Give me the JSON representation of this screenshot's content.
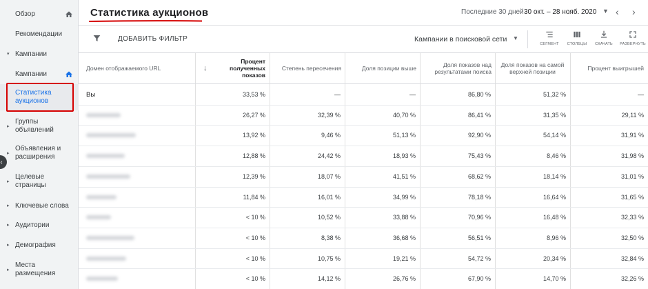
{
  "sidebar": {
    "items": [
      {
        "label": "Обзор",
        "arrow": "",
        "home": true
      },
      {
        "label": "Рекомендации",
        "arrow": "",
        "home": false
      },
      {
        "label": "Кампании",
        "arrow": "▾",
        "home": false
      },
      {
        "label": "Кампании",
        "arrow": "",
        "home": true
      },
      {
        "label": "Статистика аукционов",
        "arrow": "",
        "home": false
      },
      {
        "label": "Группы объявлений",
        "arrow": "▸",
        "home": false
      },
      {
        "label": "Объявления и расширения",
        "arrow": "▸",
        "home": false
      },
      {
        "label": "Целевые страницы",
        "arrow": "▸",
        "home": false
      },
      {
        "label": "Ключевые слова",
        "arrow": "▸",
        "home": false
      },
      {
        "label": "Аудитории",
        "arrow": "▸",
        "home": false
      },
      {
        "label": "Демография",
        "arrow": "▸",
        "home": false
      },
      {
        "label": "Места размещения",
        "arrow": "▸",
        "home": false
      }
    ],
    "item1": "Обзор",
    "item2": "Рекомендации",
    "item3": "Кампании",
    "item4": "Кампании",
    "item5a": "Статистика",
    "item5b": "аукционов",
    "item6a": "Группы",
    "item6b": "объявлений",
    "item7a": "Объявления и",
    "item7b": "расширения",
    "item8a": "Целевые",
    "item8b": "страницы",
    "item9": "Ключевые слова",
    "item10": "Аудитории",
    "item11": "Демография",
    "item12a": "Места",
    "item12b": "размещения",
    "active_color": "#1a73e8",
    "highlight_color": "#d50000"
  },
  "header": {
    "title": "Статистика аукционов",
    "date_label": "Последние 30 дней",
    "date_range": "30 окт. – 28 нояб. 2020",
    "accent_underline": "#d50000"
  },
  "toolbar": {
    "add_filter": "ДОБАВИТЬ ФИЛЬТР",
    "campaign_select": "Кампании в поисковой сети",
    "tools": {
      "segment": "СЕГМЕНТ",
      "columns": "СТОЛБЦЫ",
      "download": "СКАЧАТЬ",
      "expand": "РАЗВЕРНУТЬ"
    }
  },
  "table": {
    "headers": {
      "domain": "Домен отображаемого URL",
      "impr_share_a": "Процент",
      "impr_share_b": "полученных",
      "impr_share_c": "показов",
      "overlap": "Степень пересечения",
      "position_above": "Доля позиции выше",
      "top_rate_a": "Доля показов над",
      "top_rate_b": "результатами поиска",
      "abs_top_a": "Доля показов на самой",
      "abs_top_b": "верхней позиции",
      "outranking": "Процент выигрышей"
    },
    "rows": [
      {
        "domain": "Вы",
        "impr_share": "33,53 %",
        "overlap": "—",
        "position_above": "—",
        "top_rate": "86,80 %",
        "abs_top": "51,32 %",
        "outranking": "—"
      },
      {
        "domain": "",
        "impr_share": "26,27 %",
        "overlap": "32,39 %",
        "position_above": "40,70 %",
        "top_rate": "86,41 %",
        "abs_top": "31,35 %",
        "outranking": "29,11 %"
      },
      {
        "domain": "",
        "impr_share": "13,92 %",
        "overlap": "9,46 %",
        "position_above": "51,13 %",
        "top_rate": "92,90 %",
        "abs_top": "54,14 %",
        "outranking": "31,91 %"
      },
      {
        "domain": "",
        "impr_share": "12,88 %",
        "overlap": "24,42 %",
        "position_above": "18,93 %",
        "top_rate": "75,43 %",
        "abs_top": "8,46 %",
        "outranking": "31,98 %"
      },
      {
        "domain": "",
        "impr_share": "12,39 %",
        "overlap": "18,07 %",
        "position_above": "41,51 %",
        "top_rate": "68,62 %",
        "abs_top": "18,14 %",
        "outranking": "31,01 %"
      },
      {
        "domain": "",
        "impr_share": "11,84 %",
        "overlap": "16,01 %",
        "position_above": "34,99 %",
        "top_rate": "78,18 %",
        "abs_top": "16,64 %",
        "outranking": "31,65 %"
      },
      {
        "domain": "",
        "impr_share": "< 10 %",
        "overlap": "10,52 %",
        "position_above": "33,88 %",
        "top_rate": "70,96 %",
        "abs_top": "16,48 %",
        "outranking": "32,33 %"
      },
      {
        "domain": "",
        "impr_share": "< 10 %",
        "overlap": "8,38 %",
        "position_above": "36,68 %",
        "top_rate": "56,51 %",
        "abs_top": "8,96 %",
        "outranking": "32,50 %"
      },
      {
        "domain": "",
        "impr_share": "< 10 %",
        "overlap": "10,75 %",
        "position_above": "19,21 %",
        "top_rate": "54,72 %",
        "abs_top": "20,34 %",
        "outranking": "32,84 %"
      },
      {
        "domain": "",
        "impr_share": "< 10 %",
        "overlap": "14,12 %",
        "position_above": "26,76 %",
        "top_rate": "67,90 %",
        "abs_top": "14,70 %",
        "outranking": "32,26 %"
      }
    ]
  }
}
